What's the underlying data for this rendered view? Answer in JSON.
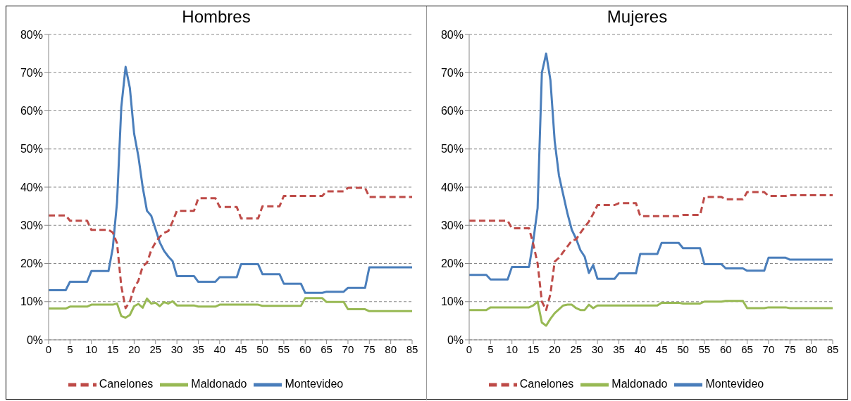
{
  "chart_data": [
    {
      "type": "line",
      "title": "Hombres",
      "xlim": [
        0,
        85
      ],
      "xticks": [
        0,
        5,
        10,
        15,
        20,
        25,
        30,
        35,
        40,
        45,
        50,
        55,
        60,
        65,
        70,
        75,
        80,
        85
      ],
      "ylim": [
        0,
        80
      ],
      "yticks": [
        {
          "value": 0,
          "label": "0%"
        },
        {
          "value": 10,
          "label": "10%"
        },
        {
          "value": 20,
          "label": "20%"
        },
        {
          "value": 30,
          "label": "30%"
        },
        {
          "value": 40,
          "label": "40%"
        },
        {
          "value": 50,
          "label": "50%"
        },
        {
          "value": 60,
          "label": "60%"
        },
        {
          "value": 70,
          "label": "70%"
        },
        {
          "value": 80,
          "label": "80%"
        }
      ],
      "grid": "y",
      "legend": "bottom",
      "x": [
        0,
        1,
        2,
        3,
        4,
        5,
        6,
        7,
        8,
        9,
        10,
        11,
        12,
        13,
        14,
        15,
        16,
        17,
        18,
        19,
        20,
        21,
        22,
        23,
        24,
        25,
        26,
        27,
        28,
        29,
        30,
        31,
        32,
        33,
        34,
        35,
        36,
        37,
        38,
        39,
        40,
        41,
        42,
        43,
        44,
        45,
        46,
        47,
        48,
        49,
        50,
        51,
        52,
        53,
        54,
        55,
        56,
        57,
        58,
        59,
        60,
        61,
        62,
        63,
        64,
        65,
        66,
        67,
        68,
        69,
        70,
        71,
        72,
        73,
        74,
        75,
        76,
        77,
        78,
        79,
        80,
        81,
        82,
        83,
        84,
        85
      ],
      "series": [
        {
          "name": "Montevideo",
          "color": "#4a7ebb",
          "line_style": "solid",
          "values": [
            13,
            13,
            13,
            13,
            13,
            15.2,
            15.2,
            15.2,
            15.2,
            15.2,
            18,
            18,
            18,
            18,
            18,
            24,
            36,
            61,
            71.5,
            66,
            54,
            48,
            40,
            33.8,
            32.5,
            29,
            25.5,
            23.3,
            21.8,
            20.6,
            16.7,
            16.7,
            16.7,
            16.7,
            16.7,
            15.2,
            15.2,
            15.2,
            15.2,
            15.2,
            16.4,
            16.4,
            16.4,
            16.4,
            16.4,
            19.8,
            19.8,
            19.8,
            19.8,
            19.8,
            17.2,
            17.2,
            17.2,
            17.2,
            17.2,
            14.7,
            14.7,
            14.7,
            14.7,
            14.7,
            12.3,
            12.3,
            12.3,
            12.3,
            12.3,
            12.6,
            12.6,
            12.6,
            12.6,
            12.6,
            13.6,
            13.6,
            13.6,
            13.6,
            13.6,
            19,
            19,
            19,
            19,
            19,
            19,
            19,
            19,
            19,
            19,
            19
          ]
        },
        {
          "name": "Canelones",
          "color": "#be4b48",
          "line_style": "dashed",
          "values": [
            32.6,
            32.6,
            32.6,
            32.6,
            32.6,
            31.2,
            31.2,
            31.2,
            31.2,
            31.2,
            28.8,
            28.8,
            28.8,
            28.8,
            28.8,
            28.1,
            25.3,
            14,
            8.3,
            10,
            13.5,
            15.5,
            19.2,
            20.2,
            23.5,
            25.5,
            27,
            28,
            28.5,
            31,
            33.8,
            33.8,
            33.8,
            33.8,
            33.8,
            37.1,
            37.1,
            37.1,
            37.1,
            37.1,
            34.8,
            34.8,
            34.8,
            34.8,
            34.8,
            31.8,
            31.8,
            31.8,
            31.8,
            31.8,
            35,
            35,
            35,
            35,
            35,
            37.7,
            37.7,
            37.7,
            37.7,
            37.7,
            37.7,
            37.7,
            37.7,
            37.7,
            37.7,
            38.9,
            38.9,
            38.9,
            38.9,
            38.9,
            39.8,
            39.8,
            39.8,
            39.8,
            39.8,
            37.4,
            37.4,
            37.4,
            37.4,
            37.4,
            37.4,
            37.4,
            37.4,
            37.4,
            37.4,
            37.4
          ]
        },
        {
          "name": "Maldonado",
          "color": "#98b954",
          "line_style": "solid",
          "values": [
            8.2,
            8.2,
            8.2,
            8.2,
            8.2,
            8.7,
            8.7,
            8.7,
            8.7,
            8.7,
            9.2,
            9.2,
            9.2,
            9.2,
            9.2,
            9.2,
            9.5,
            6.2,
            5.8,
            6.5,
            8.8,
            9.4,
            8.4,
            10.8,
            9.5,
            9.7,
            8.8,
            9.9,
            9.5,
            10.1,
            9,
            9,
            9,
            9,
            9,
            8.7,
            8.7,
            8.7,
            8.7,
            8.7,
            9.2,
            9.2,
            9.2,
            9.2,
            9.2,
            9.2,
            9.2,
            9.2,
            9.2,
            9.2,
            8.9,
            8.9,
            8.9,
            8.9,
            8.9,
            8.9,
            8.9,
            8.9,
            8.9,
            8.9,
            10.9,
            10.9,
            10.9,
            10.9,
            10.9,
            9.9,
            9.9,
            9.9,
            9.9,
            9.9,
            8,
            8,
            8,
            8,
            8,
            7.5,
            7.5,
            7.5,
            7.5,
            7.5,
            7.5,
            7.5,
            7.5,
            7.5,
            7.5,
            7.5
          ]
        }
      ]
    },
    {
      "type": "line",
      "title": "Mujeres",
      "xlim": [
        0,
        85
      ],
      "xticks": [
        0,
        5,
        10,
        15,
        20,
        25,
        30,
        35,
        40,
        45,
        50,
        55,
        60,
        65,
        70,
        75,
        80,
        85
      ],
      "ylim": [
        0,
        80
      ],
      "yticks": [
        {
          "value": 0,
          "label": "0%"
        },
        {
          "value": 10,
          "label": "10%"
        },
        {
          "value": 20,
          "label": "20%"
        },
        {
          "value": 30,
          "label": "30%"
        },
        {
          "value": 40,
          "label": "40%"
        },
        {
          "value": 50,
          "label": "50%"
        },
        {
          "value": 60,
          "label": "60%"
        },
        {
          "value": 70,
          "label": "70%"
        },
        {
          "value": 80,
          "label": "80%"
        }
      ],
      "grid": "y",
      "legend": "bottom",
      "x": [
        0,
        1,
        2,
        3,
        4,
        5,
        6,
        7,
        8,
        9,
        10,
        11,
        12,
        13,
        14,
        15,
        16,
        17,
        18,
        19,
        20,
        21,
        22,
        23,
        24,
        25,
        26,
        27,
        28,
        29,
        30,
        31,
        32,
        33,
        34,
        35,
        36,
        37,
        38,
        39,
        40,
        41,
        42,
        43,
        44,
        45,
        46,
        47,
        48,
        49,
        50,
        51,
        52,
        53,
        54,
        55,
        56,
        57,
        58,
        59,
        60,
        61,
        62,
        63,
        64,
        65,
        66,
        67,
        68,
        69,
        70,
        71,
        72,
        73,
        74,
        75,
        76,
        77,
        78,
        79,
        80,
        81,
        82,
        83,
        84,
        85
      ],
      "series": [
        {
          "name": "Montevideo",
          "color": "#4a7ebb",
          "line_style": "solid",
          "values": [
            17,
            17,
            17,
            17,
            17,
            15.8,
            15.8,
            15.8,
            15.8,
            15.8,
            19.1,
            19.1,
            19.1,
            19.1,
            19.1,
            26,
            34.5,
            70,
            75,
            68,
            52,
            43,
            38,
            33,
            28.8,
            26.5,
            23.5,
            21.8,
            17.5,
            19.6,
            16,
            16,
            16,
            16,
            16,
            17.4,
            17.4,
            17.4,
            17.4,
            17.4,
            22.5,
            22.5,
            22.5,
            22.5,
            22.5,
            25.4,
            25.4,
            25.4,
            25.4,
            25.4,
            24,
            24,
            24,
            24,
            24,
            19.8,
            19.8,
            19.8,
            19.8,
            19.8,
            18.7,
            18.7,
            18.7,
            18.7,
            18.7,
            18.1,
            18.1,
            18.1,
            18.1,
            18.1,
            21.5,
            21.5,
            21.5,
            21.5,
            21.5,
            21,
            21,
            21,
            21,
            21,
            21,
            21,
            21,
            21,
            21,
            21
          ]
        },
        {
          "name": "Canelones",
          "color": "#be4b48",
          "line_style": "dashed",
          "values": [
            31.2,
            31.2,
            31.2,
            31.2,
            31.2,
            31.2,
            31.2,
            31.2,
            31.2,
            31.2,
            29.2,
            29.2,
            29.2,
            29.2,
            29.2,
            25,
            20,
            10,
            7.8,
            12,
            20.5,
            21.5,
            23,
            24.5,
            26,
            26.3,
            28,
            29.5,
            31,
            33,
            35.3,
            35.3,
            35.3,
            35.3,
            35.3,
            35.8,
            35.8,
            35.8,
            35.8,
            35.8,
            32.4,
            32.4,
            32.4,
            32.4,
            32.4,
            32.4,
            32.4,
            32.4,
            32.4,
            32.4,
            32.7,
            32.7,
            32.7,
            32.7,
            32.7,
            37.4,
            37.4,
            37.4,
            37.4,
            37.4,
            36.8,
            36.8,
            36.8,
            36.8,
            36.8,
            38.7,
            38.7,
            38.7,
            38.7,
            38.7,
            37.7,
            37.7,
            37.7,
            37.7,
            37.7,
            37.9,
            37.9,
            37.9,
            37.9,
            37.9,
            37.9,
            37.9,
            37.9,
            37.9,
            37.9,
            37.9
          ]
        },
        {
          "name": "Maldonado",
          "color": "#98b954",
          "line_style": "solid",
          "values": [
            7.8,
            7.8,
            7.8,
            7.8,
            7.8,
            8.5,
            8.5,
            8.5,
            8.5,
            8.5,
            8.5,
            8.5,
            8.5,
            8.5,
            8.5,
            9,
            10,
            4.5,
            3.7,
            5.5,
            7,
            8,
            9,
            9.2,
            9.2,
            8.3,
            7.8,
            7.8,
            9.2,
            8.3,
            9,
            9,
            9,
            9,
            9,
            9,
            9,
            9,
            9,
            9,
            9,
            9,
            9,
            9,
            9,
            9.7,
            9.7,
            9.7,
            9.7,
            9.7,
            9.5,
            9.5,
            9.5,
            9.5,
            9.5,
            10,
            10,
            10,
            10,
            10,
            10.2,
            10.2,
            10.2,
            10.2,
            10.2,
            8.3,
            8.3,
            8.3,
            8.3,
            8.3,
            8.5,
            8.5,
            8.5,
            8.5,
            8.5,
            8.3,
            8.3,
            8.3,
            8.3,
            8.3,
            8.3,
            8.3,
            8.3,
            8.3,
            8.3,
            8.3
          ]
        }
      ]
    }
  ]
}
